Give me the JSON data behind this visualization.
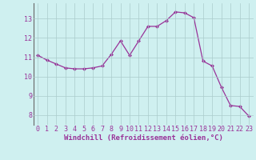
{
  "x": [
    0,
    1,
    2,
    3,
    4,
    5,
    6,
    7,
    8,
    9,
    10,
    11,
    12,
    13,
    14,
    15,
    16,
    17,
    18,
    19,
    20,
    21,
    22,
    23
  ],
  "y": [
    11.1,
    10.85,
    10.65,
    10.45,
    10.4,
    10.4,
    10.45,
    10.55,
    11.15,
    11.85,
    11.1,
    11.85,
    12.6,
    12.6,
    12.9,
    13.35,
    13.3,
    13.05,
    10.8,
    10.55,
    9.45,
    8.5,
    8.45,
    7.95
  ],
  "line_color": "#993399",
  "marker": "D",
  "marker_size": 2,
  "bg_color": "#cff0f0",
  "grid_color": "#aacccc",
  "xlabel": "Windchill (Refroidissement éolien,°C)",
  "xlabel_fontsize": 6.5,
  "tick_fontsize": 6.0,
  "ylim": [
    7.5,
    13.8
  ],
  "xlim": [
    -0.5,
    23.5
  ],
  "yticks": [
    8,
    9,
    10,
    11,
    12,
    13
  ],
  "xticks": [
    0,
    1,
    2,
    3,
    4,
    5,
    6,
    7,
    8,
    9,
    10,
    11,
    12,
    13,
    14,
    15,
    16,
    17,
    18,
    19,
    20,
    21,
    22,
    23
  ]
}
